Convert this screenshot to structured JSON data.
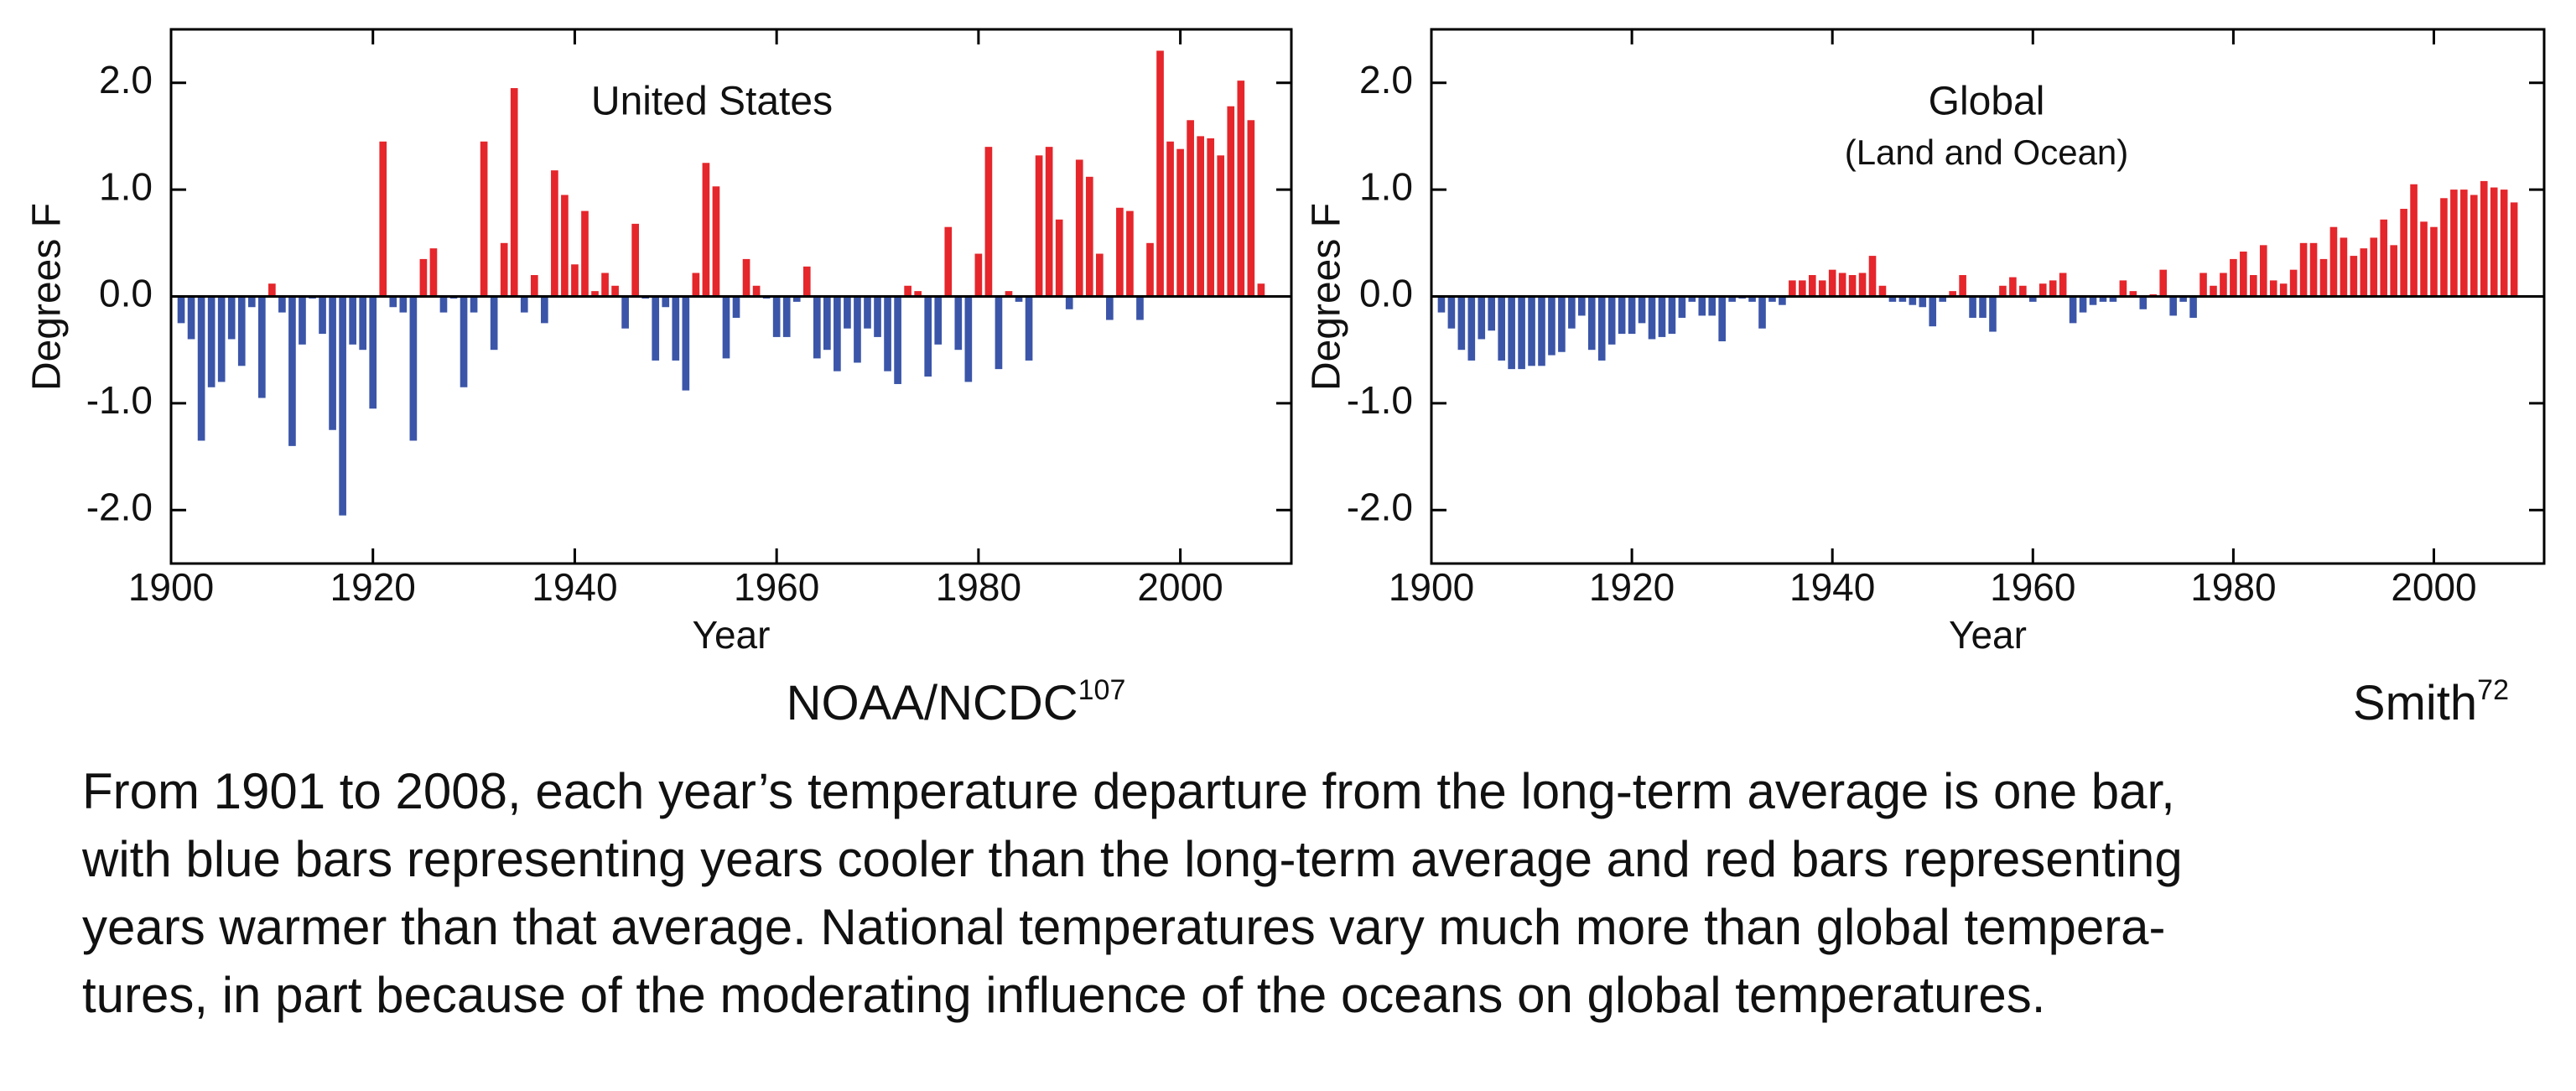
{
  "chart_data": [
    {
      "type": "bar",
      "title": "United States",
      "ylabel": "Degrees F",
      "xlabel": "Year",
      "source": "NOAA/NCDC",
      "source_ref": "107",
      "positive_color": "#e5262b",
      "negative_color": "#3b55a8",
      "xlim": [
        1900,
        2011
      ],
      "xticks": [
        1900,
        1920,
        1940,
        1960,
        1980,
        2000
      ],
      "ylim": [
        -2.5,
        2.5
      ],
      "yticks": [
        {
          "value": 2,
          "label": "2.0"
        },
        {
          "value": 1,
          "label": "1.0"
        },
        {
          "value": 0,
          "label": "0.0"
        },
        {
          "value": -1,
          "label": "-1.0"
        },
        {
          "value": -2,
          "label": "-2.0"
        }
      ],
      "x": [
        1901,
        1902,
        1903,
        1904,
        1905,
        1906,
        1907,
        1908,
        1909,
        1910,
        1911,
        1912,
        1913,
        1914,
        1915,
        1916,
        1917,
        1918,
        1919,
        1920,
        1921,
        1922,
        1923,
        1924,
        1925,
        1926,
        1927,
        1928,
        1929,
        1930,
        1931,
        1932,
        1933,
        1934,
        1935,
        1936,
        1937,
        1938,
        1939,
        1940,
        1941,
        1942,
        1943,
        1944,
        1945,
        1946,
        1947,
        1948,
        1949,
        1950,
        1951,
        1952,
        1953,
        1954,
        1955,
        1956,
        1957,
        1958,
        1959,
        1960,
        1961,
        1962,
        1963,
        1964,
        1965,
        1966,
        1967,
        1968,
        1969,
        1970,
        1971,
        1972,
        1973,
        1974,
        1975,
        1976,
        1977,
        1978,
        1979,
        1980,
        1981,
        1982,
        1983,
        1984,
        1985,
        1986,
        1987,
        1988,
        1989,
        1990,
        1991,
        1992,
        1993,
        1994,
        1995,
        1996,
        1997,
        1998,
        1999,
        2000,
        2001,
        2002,
        2003,
        2004,
        2005,
        2006,
        2007,
        2008
      ],
      "values": [
        -0.25,
        -0.4,
        -1.35,
        -0.85,
        -0.8,
        -0.4,
        -0.65,
        -0.1,
        -0.95,
        0.12,
        -0.15,
        -1.4,
        -0.45,
        -0.02,
        -0.35,
        -1.25,
        -2.05,
        -0.45,
        -0.5,
        -1.05,
        1.45,
        -0.1,
        -0.15,
        -1.35,
        0.35,
        0.45,
        -0.15,
        -0.02,
        -0.85,
        -0.15,
        1.45,
        -0.5,
        0.5,
        1.95,
        -0.15,
        0.2,
        -0.25,
        1.18,
        0.95,
        0.3,
        0.8,
        0.05,
        0.22,
        0.1,
        -0.3,
        0.68,
        -0.02,
        -0.6,
        -0.1,
        -0.6,
        -0.88,
        0.22,
        1.25,
        1.03,
        -0.58,
        -0.2,
        0.35,
        0.1,
        -0.02,
        -0.38,
        -0.38,
        -0.05,
        0.28,
        -0.58,
        -0.5,
        -0.7,
        -0.3,
        -0.62,
        -0.3,
        -0.38,
        -0.7,
        -0.82,
        0.1,
        0.05,
        -0.75,
        -0.45,
        0.65,
        -0.5,
        -0.8,
        0.4,
        1.4,
        -0.68,
        0.05,
        -0.05,
        -0.6,
        1.32,
        1.4,
        0.72,
        -0.12,
        1.28,
        1.12,
        0.4,
        -0.22,
        0.83,
        0.8,
        -0.22,
        0.5,
        2.3,
        1.45,
        1.38,
        1.65,
        1.5,
        1.48,
        1.32,
        1.78,
        2.02,
        1.65,
        0.12
      ]
    },
    {
      "type": "bar",
      "title": "Global",
      "subtitle": "(Land and Ocean)",
      "ylabel": "Degrees F",
      "xlabel": "Year",
      "source": "Smith",
      "source_ref": "72",
      "positive_color": "#e5262b",
      "negative_color": "#3b55a8",
      "xlim": [
        1900,
        2011
      ],
      "xticks": [
        1900,
        1920,
        1940,
        1960,
        1980,
        2000
      ],
      "ylim": [
        -2.5,
        2.5
      ],
      "yticks": [
        {
          "value": 2,
          "label": "2.0"
        },
        {
          "value": 1,
          "label": "1.0"
        },
        {
          "value": 0,
          "label": "0.0"
        },
        {
          "value": -1,
          "label": "-1.0"
        },
        {
          "value": -2,
          "label": "-2.0"
        }
      ],
      "x": [
        1901,
        1902,
        1903,
        1904,
        1905,
        1906,
        1907,
        1908,
        1909,
        1910,
        1911,
        1912,
        1913,
        1914,
        1915,
        1916,
        1917,
        1918,
        1919,
        1920,
        1921,
        1922,
        1923,
        1924,
        1925,
        1926,
        1927,
        1928,
        1929,
        1930,
        1931,
        1932,
        1933,
        1934,
        1935,
        1936,
        1937,
        1938,
        1939,
        1940,
        1941,
        1942,
        1943,
        1944,
        1945,
        1946,
        1947,
        1948,
        1949,
        1950,
        1951,
        1952,
        1953,
        1954,
        1955,
        1956,
        1957,
        1958,
        1959,
        1960,
        1961,
        1962,
        1963,
        1964,
        1965,
        1966,
        1967,
        1968,
        1969,
        1970,
        1971,
        1972,
        1973,
        1974,
        1975,
        1976,
        1977,
        1978,
        1979,
        1980,
        1981,
        1982,
        1983,
        1984,
        1985,
        1986,
        1987,
        1988,
        1989,
        1990,
        1991,
        1992,
        1993,
        1994,
        1995,
        1996,
        1997,
        1998,
        1999,
        2000,
        2001,
        2002,
        2003,
        2004,
        2005,
        2006,
        2007,
        2008
      ],
      "values": [
        -0.15,
        -0.3,
        -0.5,
        -0.6,
        -0.4,
        -0.32,
        -0.6,
        -0.68,
        -0.68,
        -0.65,
        -0.65,
        -0.55,
        -0.52,
        -0.3,
        -0.18,
        -0.5,
        -0.6,
        -0.45,
        -0.35,
        -0.35,
        -0.25,
        -0.4,
        -0.38,
        -0.35,
        -0.2,
        -0.05,
        -0.18,
        -0.18,
        -0.42,
        -0.05,
        -0.02,
        -0.05,
        -0.3,
        -0.05,
        -0.08,
        0.15,
        0.15,
        0.2,
        0.15,
        0.25,
        0.22,
        0.2,
        0.22,
        0.38,
        0.1,
        -0.05,
        -0.05,
        -0.08,
        -0.1,
        -0.28,
        -0.05,
        0.05,
        0.2,
        -0.2,
        -0.2,
        -0.33,
        0.1,
        0.18,
        0.1,
        -0.05,
        0.12,
        0.15,
        0.22,
        -0.25,
        -0.15,
        -0.08,
        -0.05,
        -0.05,
        0.15,
        0.05,
        -0.12,
        0.02,
        0.25,
        -0.18,
        -0.05,
        -0.2,
        0.22,
        0.1,
        0.22,
        0.35,
        0.42,
        0.2,
        0.48,
        0.15,
        0.12,
        0.25,
        0.5,
        0.5,
        0.35,
        0.65,
        0.55,
        0.38,
        0.45,
        0.55,
        0.72,
        0.48,
        0.82,
        1.05,
        0.7,
        0.65,
        0.92,
        1.0,
        1.0,
        0.95,
        1.08,
        1.02,
        1.0,
        0.88
      ]
    }
  ],
  "caption": [
    "From 1901 to 2008, each year’s temperature departure from the long-term average is one bar,",
    "with blue bars representing years cooler than the long-term average and red bars representing",
    "years warmer than that average. National temperatures vary much more than global tempera-",
    "tures, in part because of the moderating influence of the oceans on global temperatures."
  ]
}
